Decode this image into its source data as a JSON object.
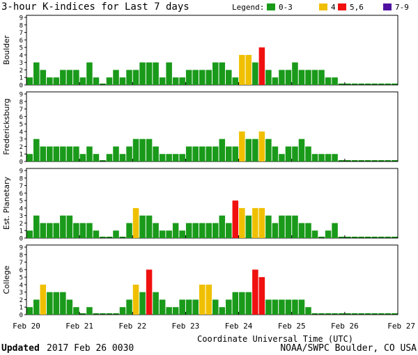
{
  "title": "3-hour K-indices for Last 7 days",
  "legend": {
    "label": "Legend:",
    "items": [
      {
        "label": "0-3",
        "color": "#1a9a1a"
      },
      {
        "label": "4",
        "color": "#f0c000"
      },
      {
        "label": "5,6",
        "color": "#f01010"
      },
      {
        "label": "7-9",
        "color": "#5010a0"
      }
    ]
  },
  "xlabel": "Coordinate Universal Time (UTC)",
  "footer": {
    "updated_label": "Updated",
    "updated_value": "2017 Feb 26 0030",
    "source": "NOAA/SWPC Boulder, CO USA"
  },
  "chart_data": [
    {
      "type": "bar",
      "ylabel": "Boulder",
      "ylim": [
        0,
        9
      ],
      "yticks": [
        "0",
        "1",
        "2",
        "3",
        "4",
        "5",
        "6",
        "7",
        "8",
        "9"
      ],
      "xticks": [
        "Feb 20",
        "Feb 21",
        "Feb 22",
        "Feb 23",
        "Feb 24",
        "Feb 25",
        "Feb 26",
        "Feb 27"
      ],
      "values": [
        1,
        3,
        2,
        1,
        1,
        2,
        2,
        2,
        1,
        3,
        1,
        0,
        1,
        2,
        1,
        2,
        2,
        3,
        3,
        3,
        1,
        3,
        1,
        1,
        2,
        2,
        2,
        2,
        3,
        3,
        2,
        1,
        4,
        4,
        3,
        5,
        2,
        1,
        2,
        2,
        3,
        2,
        2,
        2,
        2,
        1,
        1,
        0,
        0,
        0,
        0,
        0,
        0,
        0,
        0,
        0
      ]
    },
    {
      "type": "bar",
      "ylabel": "Fredericksburg",
      "ylim": [
        0,
        9
      ],
      "yticks": [
        "0",
        "1",
        "2",
        "3",
        "4",
        "5",
        "6",
        "7",
        "8",
        "9"
      ],
      "xticks": [
        "Feb 20",
        "Feb 21",
        "Feb 22",
        "Feb 23",
        "Feb 24",
        "Feb 25",
        "Feb 26",
        "Feb 27"
      ],
      "values": [
        1,
        3,
        2,
        2,
        2,
        2,
        2,
        2,
        1,
        2,
        1,
        0,
        1,
        2,
        1,
        2,
        3,
        3,
        3,
        2,
        1,
        1,
        1,
        1,
        2,
        2,
        2,
        2,
        2,
        3,
        2,
        2,
        4,
        3,
        3,
        4,
        3,
        2,
        1,
        2,
        2,
        3,
        2,
        1,
        1,
        1,
        1,
        0,
        0,
        0,
        0,
        0,
        0,
        0,
        0,
        0
      ]
    },
    {
      "type": "bar",
      "ylabel": "Est. Planetary",
      "ylim": [
        0,
        9
      ],
      "yticks": [
        "0",
        "1",
        "2",
        "3",
        "4",
        "5",
        "6",
        "7",
        "8",
        "9"
      ],
      "xticks": [
        "Feb 20",
        "Feb 21",
        "Feb 22",
        "Feb 23",
        "Feb 24",
        "Feb 25",
        "Feb 26",
        "Feb 27"
      ],
      "values": [
        1,
        3,
        2,
        2,
        2,
        3,
        3,
        2,
        2,
        2,
        1,
        0,
        0,
        1,
        0,
        2,
        4,
        3,
        3,
        2,
        1,
        1,
        2,
        1,
        2,
        2,
        2,
        2,
        2,
        3,
        2,
        5,
        4,
        3,
        4,
        4,
        3,
        2,
        3,
        3,
        3,
        2,
        2,
        1,
        0,
        1,
        2,
        0,
        0,
        0,
        0,
        0,
        0,
        0,
        0,
        0
      ]
    },
    {
      "type": "bar",
      "ylabel": "College",
      "ylim": [
        0,
        9
      ],
      "yticks": [
        "0",
        "1",
        "2",
        "3",
        "4",
        "5",
        "6",
        "7",
        "8",
        "9"
      ],
      "xticks": [
        "Feb 20",
        "Feb 21",
        "Feb 22",
        "Feb 23",
        "Feb 24",
        "Feb 25",
        "Feb 26",
        "Feb 27"
      ],
      "values": [
        1,
        2,
        4,
        3,
        3,
        3,
        2,
        1,
        0,
        1,
        0,
        0,
        0,
        0,
        1,
        2,
        4,
        3,
        6,
        3,
        2,
        1,
        1,
        2,
        2,
        2,
        4,
        4,
        2,
        1,
        2,
        3,
        3,
        3,
        6,
        5,
        2,
        2,
        2,
        2,
        2,
        2,
        1,
        0,
        0,
        0,
        0,
        0,
        0,
        0,
        0,
        0,
        0,
        0,
        0,
        0
      ]
    }
  ]
}
